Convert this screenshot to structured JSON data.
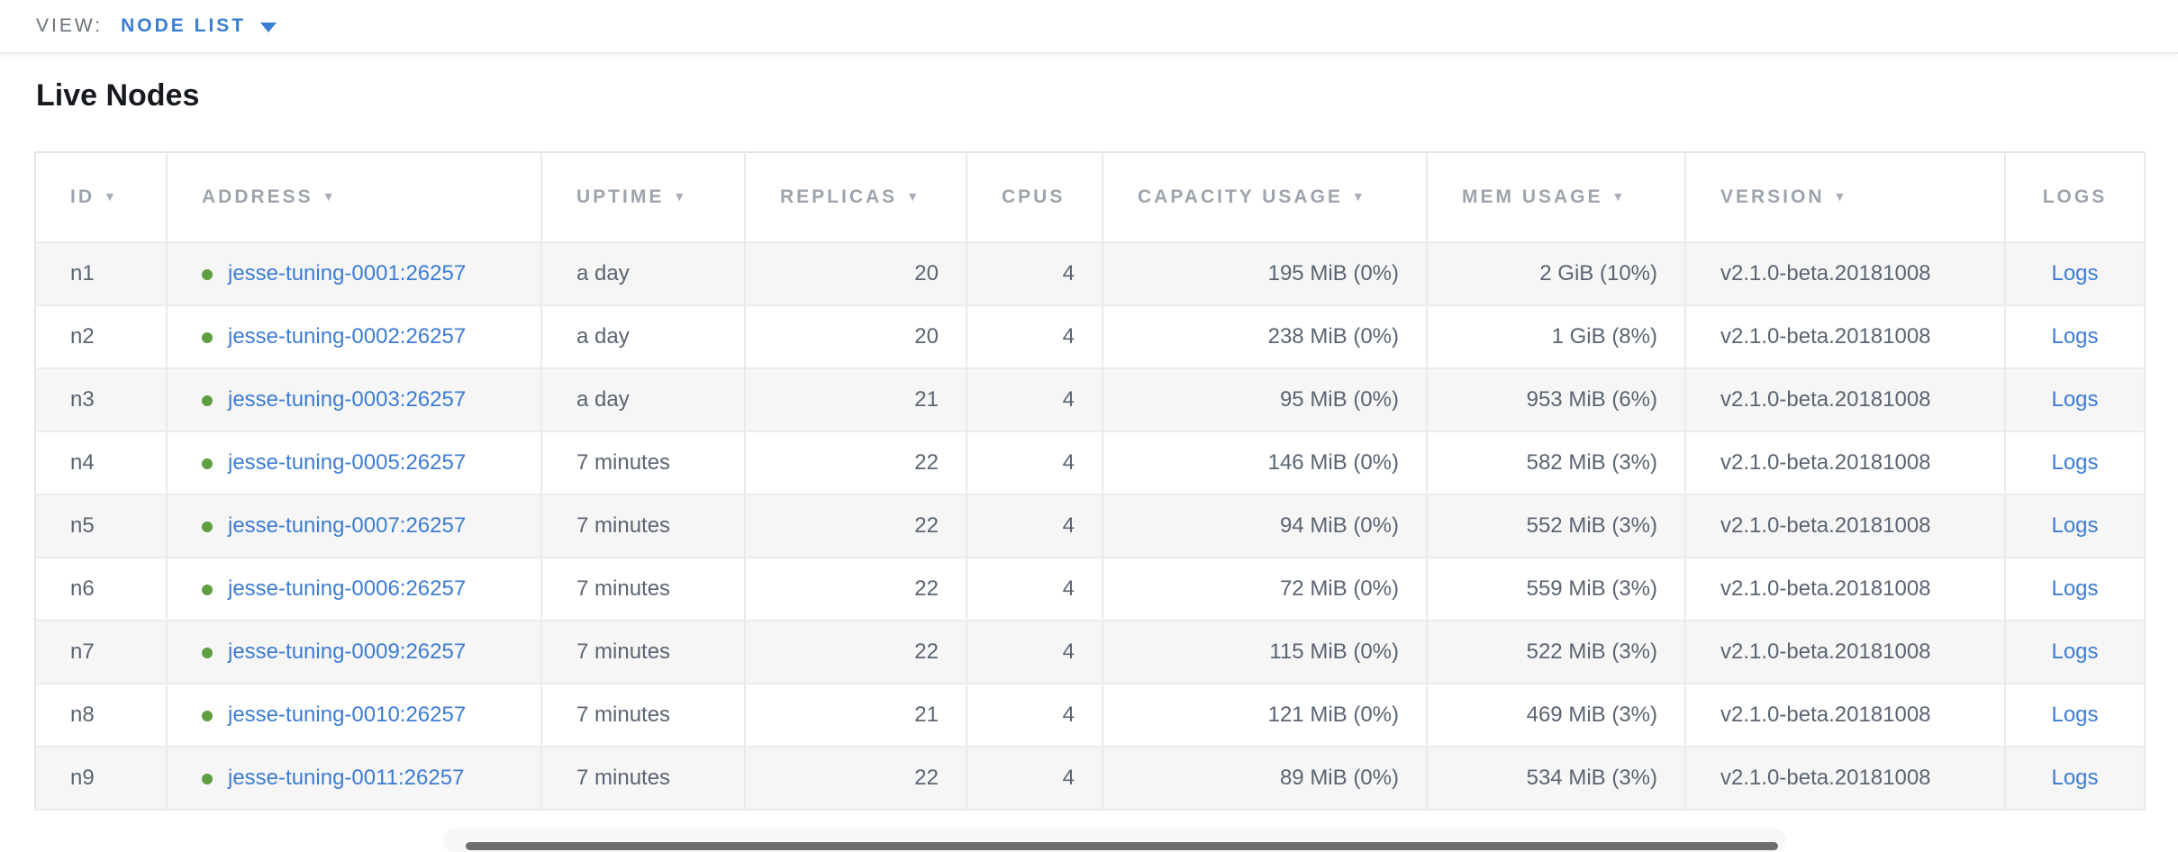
{
  "toolbar": {
    "view_label": "VIEW:",
    "view_value": "NODE LIST"
  },
  "page": {
    "title": "Live Nodes"
  },
  "colors": {
    "accent_blue": "#3a7ed2",
    "link_blue": "#3d7cd2",
    "status_green": "#5f9e41",
    "header_gray": "#9ea4ad",
    "cell_text": "#5b6472",
    "row_alt_bg": "#f6f6f6"
  },
  "table": {
    "columns": [
      {
        "key": "id",
        "label": "ID",
        "sortable": true,
        "align": "left"
      },
      {
        "key": "address",
        "label": "ADDRESS",
        "sortable": true,
        "align": "left"
      },
      {
        "key": "uptime",
        "label": "UPTIME",
        "sortable": true,
        "align": "left"
      },
      {
        "key": "replicas",
        "label": "REPLICAS",
        "sortable": true,
        "align": "right"
      },
      {
        "key": "cpus",
        "label": "CPUS",
        "sortable": false,
        "align": "right"
      },
      {
        "key": "capacity_usage",
        "label": "CAPACITY USAGE",
        "sortable": true,
        "align": "right"
      },
      {
        "key": "mem_usage",
        "label": "MEM USAGE",
        "sortable": true,
        "align": "right"
      },
      {
        "key": "version",
        "label": "VERSION",
        "sortable": true,
        "align": "left"
      },
      {
        "key": "logs",
        "label": "LOGS",
        "sortable": false,
        "align": "center"
      }
    ],
    "sort_icon": "▼",
    "rows": [
      {
        "id": "n1",
        "address": "jesse-tuning-0001:26257",
        "uptime": "a day",
        "replicas": "20",
        "cpus": "4",
        "capacity_usage": "195 MiB (0%)",
        "mem_usage": "2 GiB (10%)",
        "version": "v2.1.0-beta.20181008",
        "logs": "Logs"
      },
      {
        "id": "n2",
        "address": "jesse-tuning-0002:26257",
        "uptime": "a day",
        "replicas": "20",
        "cpus": "4",
        "capacity_usage": "238 MiB (0%)",
        "mem_usage": "1 GiB (8%)",
        "version": "v2.1.0-beta.20181008",
        "logs": "Logs"
      },
      {
        "id": "n3",
        "address": "jesse-tuning-0003:26257",
        "uptime": "a day",
        "replicas": "21",
        "cpus": "4",
        "capacity_usage": "95 MiB (0%)",
        "mem_usage": "953 MiB (6%)",
        "version": "v2.1.0-beta.20181008",
        "logs": "Logs"
      },
      {
        "id": "n4",
        "address": "jesse-tuning-0005:26257",
        "uptime": "7 minutes",
        "replicas": "22",
        "cpus": "4",
        "capacity_usage": "146 MiB (0%)",
        "mem_usage": "582 MiB (3%)",
        "version": "v2.1.0-beta.20181008",
        "logs": "Logs"
      },
      {
        "id": "n5",
        "address": "jesse-tuning-0007:26257",
        "uptime": "7 minutes",
        "replicas": "22",
        "cpus": "4",
        "capacity_usage": "94 MiB (0%)",
        "mem_usage": "552 MiB (3%)",
        "version": "v2.1.0-beta.20181008",
        "logs": "Logs"
      },
      {
        "id": "n6",
        "address": "jesse-tuning-0006:26257",
        "uptime": "7 minutes",
        "replicas": "22",
        "cpus": "4",
        "capacity_usage": "72 MiB (0%)",
        "mem_usage": "559 MiB (3%)",
        "version": "v2.1.0-beta.20181008",
        "logs": "Logs"
      },
      {
        "id": "n7",
        "address": "jesse-tuning-0009:26257",
        "uptime": "7 minutes",
        "replicas": "22",
        "cpus": "4",
        "capacity_usage": "115 MiB (0%)",
        "mem_usage": "522 MiB (3%)",
        "version": "v2.1.0-beta.20181008",
        "logs": "Logs"
      },
      {
        "id": "n8",
        "address": "jesse-tuning-0010:26257",
        "uptime": "7 minutes",
        "replicas": "21",
        "cpus": "4",
        "capacity_usage": "121 MiB (0%)",
        "mem_usage": "469 MiB (3%)",
        "version": "v2.1.0-beta.20181008",
        "logs": "Logs"
      },
      {
        "id": "n9",
        "address": "jesse-tuning-0011:26257",
        "uptime": "7 minutes",
        "replicas": "22",
        "cpus": "4",
        "capacity_usage": "89 MiB (0%)",
        "mem_usage": "534 MiB (3%)",
        "version": "v2.1.0-beta.20181008",
        "logs": "Logs"
      }
    ]
  }
}
